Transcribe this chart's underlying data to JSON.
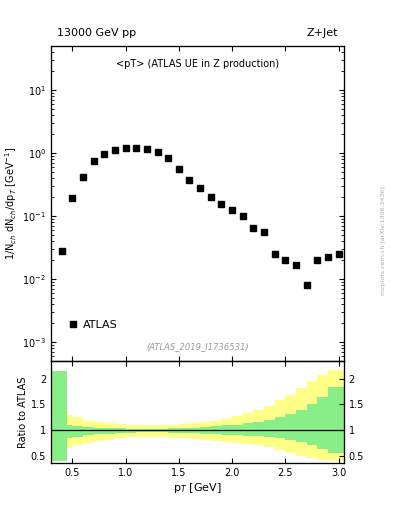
{
  "title_left": "13000 GeV pp",
  "title_right": "Z+Jet",
  "main_label": "<pT> (ATLAS UE in Z production)",
  "atlas_label": "ATLAS",
  "ref_label": "(ATLAS_2019_I1736531)",
  "ylabel_main": "1/N$_{ch}$ dN$_{ch}$/dp$_T$ [GeV$^{-1}$]",
  "ylabel_ratio": "Ratio to ATLAS",
  "xlabel": "p$_T$ [GeV]",
  "watermark": "mcplots.cern.ch [arXiv:1306.3436]",
  "data_x": [
    0.4,
    0.5,
    0.6,
    0.7,
    0.8,
    0.9,
    1.0,
    1.1,
    1.2,
    1.3,
    1.4,
    1.5,
    1.6,
    1.7,
    1.8,
    1.9,
    2.0,
    2.1,
    2.2,
    2.3,
    2.4,
    2.5,
    2.6,
    2.7,
    2.8,
    2.9,
    3.0
  ],
  "data_y": [
    0.028,
    0.19,
    0.42,
    0.75,
    0.95,
    1.1,
    1.2,
    1.2,
    1.15,
    1.05,
    0.85,
    0.55,
    0.38,
    0.28,
    0.2,
    0.155,
    0.125,
    0.1,
    0.065,
    0.055,
    0.025,
    0.02,
    0.017,
    0.008,
    0.02,
    0.022,
    0.025
  ],
  "ylim_main": [
    0.0005,
    50
  ],
  "xlim": [
    0.3,
    3.05
  ],
  "ratio_ylim": [
    0.35,
    2.35
  ],
  "bin_edges": [
    0.3,
    0.45,
    0.5,
    0.6,
    0.7,
    0.8,
    0.9,
    1.0,
    1.1,
    1.2,
    1.3,
    1.4,
    1.5,
    1.6,
    1.7,
    1.8,
    1.9,
    2.0,
    2.1,
    2.2,
    2.3,
    2.4,
    2.5,
    2.6,
    2.7,
    2.8,
    2.9,
    3.05
  ],
  "green_lo": [
    0.4,
    0.85,
    0.87,
    0.9,
    0.92,
    0.93,
    0.94,
    0.95,
    0.96,
    0.96,
    0.96,
    0.95,
    0.95,
    0.94,
    0.93,
    0.92,
    0.91,
    0.9,
    0.89,
    0.88,
    0.86,
    0.84,
    0.8,
    0.76,
    0.7,
    0.63,
    0.55,
    0.5
  ],
  "green_hi": [
    2.15,
    1.1,
    1.08,
    1.06,
    1.05,
    1.04,
    1.04,
    1.03,
    1.03,
    1.03,
    1.03,
    1.04,
    1.04,
    1.05,
    1.06,
    1.07,
    1.09,
    1.1,
    1.13,
    1.16,
    1.2,
    1.25,
    1.32,
    1.4,
    1.5,
    1.65,
    1.85,
    2.05
  ],
  "yellow_lo": [
    0.4,
    0.65,
    0.7,
    0.75,
    0.78,
    0.81,
    0.84,
    0.86,
    0.87,
    0.87,
    0.87,
    0.85,
    0.84,
    0.82,
    0.8,
    0.78,
    0.76,
    0.74,
    0.72,
    0.7,
    0.66,
    0.62,
    0.56,
    0.5,
    0.45,
    0.42,
    0.4,
    0.42
  ],
  "yellow_hi": [
    2.15,
    1.3,
    1.25,
    1.18,
    1.15,
    1.13,
    1.11,
    1.1,
    1.09,
    1.09,
    1.09,
    1.1,
    1.11,
    1.13,
    1.15,
    1.18,
    1.22,
    1.27,
    1.33,
    1.4,
    1.48,
    1.58,
    1.68,
    1.82,
    1.95,
    2.08,
    2.18,
    2.25
  ],
  "marker_color": "black",
  "marker_size": 4,
  "green_color": "#88EE88",
  "yellow_color": "#FFFF88",
  "bg_color": "white"
}
